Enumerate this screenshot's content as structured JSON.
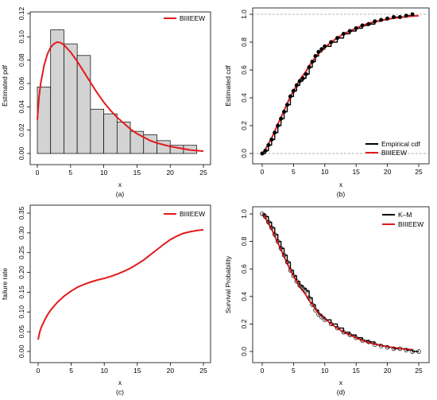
{
  "chart_data": [
    {
      "type": "bar",
      "ylabel": "Estimated pdf",
      "xlabel": "x",
      "caption": "(a)",
      "xlim": [
        0,
        25
      ],
      "ylim": [
        0,
        0.12
      ],
      "xticks": [
        "0",
        "5",
        "10",
        "15",
        "20",
        "25"
      ],
      "yticks": [
        "0.00",
        "0.02",
        "0.04",
        "0.06",
        "0.08",
        "0.10",
        "0.12"
      ],
      "legend": {
        "position": "top-right",
        "entries": [
          "BIIIEEW"
        ]
      },
      "histogram": {
        "breaks": [
          0,
          2,
          4,
          6,
          8,
          10,
          12,
          14,
          16,
          18,
          20,
          22,
          24
        ],
        "values": [
          0.057,
          0.106,
          0.094,
          0.084,
          0.038,
          0.034,
          0.027,
          0.019,
          0.016,
          0.011,
          0.007,
          0.007
        ]
      },
      "series": [
        {
          "name": "BIIIEEW",
          "x": [
            0,
            0.25,
            0.5,
            1,
            1.5,
            2,
            2.5,
            3,
            3.5,
            4,
            5,
            6,
            7,
            8,
            9,
            10,
            11,
            12,
            13,
            14,
            15,
            16,
            17,
            18,
            19,
            20,
            21,
            22,
            23,
            24,
            25
          ],
          "y": [
            0.029,
            0.048,
            0.06,
            0.075,
            0.085,
            0.091,
            0.094,
            0.0955,
            0.095,
            0.093,
            0.087,
            0.079,
            0.07,
            0.061,
            0.052,
            0.044,
            0.037,
            0.031,
            0.026,
            0.021,
            0.017,
            0.014,
            0.011,
            0.009,
            0.0075,
            0.006,
            0.005,
            0.004,
            0.003,
            0.0025,
            0.002
          ]
        }
      ]
    },
    {
      "type": "line",
      "ylabel": "Estimated cdf",
      "xlabel": "x",
      "caption": "(b)",
      "xlim": [
        0,
        25
      ],
      "ylim": [
        0,
        1
      ],
      "xticks": [
        "0",
        "5",
        "10",
        "15",
        "20",
        "25"
      ],
      "yticks": [
        "0.0",
        "0.2",
        "0.4",
        "0.6",
        "0.8",
        "1.0"
      ],
      "legend": {
        "position": "bottom-right",
        "entries": [
          "Empirical cdf",
          "BIIIEEW"
        ]
      },
      "series": [
        {
          "name": "Empirical cdf",
          "x": [
            0,
            0.5,
            1,
            1.5,
            2,
            2.5,
            3,
            3.5,
            4,
            4.5,
            5,
            5.5,
            6,
            6.5,
            7,
            7.5,
            8,
            8.5,
            9,
            9.5,
            10,
            11,
            12,
            13,
            14,
            15,
            16,
            17,
            18,
            19,
            20,
            21,
            22,
            23,
            24
          ],
          "y": [
            0.0,
            0.02,
            0.06,
            0.1,
            0.15,
            0.2,
            0.25,
            0.3,
            0.35,
            0.41,
            0.45,
            0.49,
            0.52,
            0.54,
            0.57,
            0.62,
            0.66,
            0.7,
            0.73,
            0.75,
            0.77,
            0.8,
            0.83,
            0.86,
            0.88,
            0.9,
            0.92,
            0.93,
            0.95,
            0.96,
            0.97,
            0.98,
            0.98,
            0.99,
            1.0
          ]
        },
        {
          "name": "BIIIEEW",
          "x": [
            0,
            0.5,
            1,
            1.5,
            2,
            2.5,
            3,
            3.5,
            4,
            4.5,
            5,
            5.5,
            6,
            6.5,
            7,
            7.5,
            8,
            8.5,
            9,
            9.5,
            10,
            11,
            12,
            13,
            14,
            15,
            16,
            17,
            18,
            19,
            20,
            21,
            22,
            23,
            24,
            25
          ],
          "y": [
            0.0,
            0.03,
            0.07,
            0.11,
            0.16,
            0.21,
            0.26,
            0.31,
            0.36,
            0.41,
            0.45,
            0.49,
            0.53,
            0.56,
            0.59,
            0.63,
            0.66,
            0.69,
            0.72,
            0.74,
            0.76,
            0.8,
            0.83,
            0.86,
            0.88,
            0.9,
            0.92,
            0.935,
            0.947,
            0.957,
            0.965,
            0.972,
            0.978,
            0.983,
            0.987,
            0.99
          ]
        }
      ]
    },
    {
      "type": "line",
      "ylabel": "failure rate",
      "xlabel": "x",
      "caption": "(c)",
      "xlim": [
        0,
        25
      ],
      "ylim": [
        0,
        0.35
      ],
      "xticks": [
        "0",
        "5",
        "10",
        "15",
        "20",
        "25"
      ],
      "yticks": [
        "0.00",
        "0.05",
        "0.10",
        "0.15",
        "0.20",
        "0.25",
        "0.30",
        "0.35"
      ],
      "legend": {
        "position": "top-right",
        "entries": [
          "BIIIEEW"
        ]
      },
      "series": [
        {
          "name": "BIIIEEW",
          "x": [
            0,
            0.25,
            0.5,
            1,
            1.5,
            2,
            3,
            4,
            5,
            6,
            7,
            8,
            9,
            10,
            11,
            12,
            13,
            14,
            15,
            16,
            17,
            18,
            19,
            20,
            21,
            22,
            23,
            24,
            25
          ],
          "y": [
            0.03,
            0.05,
            0.062,
            0.08,
            0.095,
            0.107,
            0.126,
            0.141,
            0.153,
            0.163,
            0.17,
            0.176,
            0.181,
            0.185,
            0.19,
            0.196,
            0.203,
            0.211,
            0.221,
            0.232,
            0.245,
            0.258,
            0.271,
            0.283,
            0.292,
            0.299,
            0.303,
            0.306,
            0.308
          ]
        }
      ]
    },
    {
      "type": "line",
      "ylabel": "Survival Probability",
      "xlabel": "x",
      "caption": "(d)",
      "xlim": [
        0,
        25
      ],
      "ylim": [
        0,
        1
      ],
      "xticks": [
        "0",
        "5",
        "10",
        "15",
        "20",
        "25"
      ],
      "yticks": [
        "0.0",
        "0.2",
        "0.4",
        "0.6",
        "0.8",
        "1.0"
      ],
      "legend": {
        "position": "top-right",
        "entries": [
          "K–M",
          "BIIIEEW"
        ]
      },
      "series": [
        {
          "name": "K–M",
          "x": [
            0,
            0.5,
            1,
            1.5,
            2,
            2.5,
            3,
            3.5,
            4,
            4.5,
            5,
            5.5,
            6,
            6.5,
            7,
            7.5,
            8,
            8.5,
            9,
            9.5,
            10,
            11,
            12,
            13,
            14,
            15,
            16,
            17,
            18,
            19,
            20,
            21,
            22,
            23,
            24,
            25
          ],
          "y": [
            1.0,
            0.98,
            0.94,
            0.9,
            0.85,
            0.8,
            0.75,
            0.7,
            0.65,
            0.59,
            0.55,
            0.51,
            0.48,
            0.46,
            0.44,
            0.39,
            0.34,
            0.3,
            0.27,
            0.25,
            0.23,
            0.2,
            0.17,
            0.14,
            0.12,
            0.1,
            0.08,
            0.07,
            0.05,
            0.04,
            0.03,
            0.02,
            0.02,
            0.01,
            0.0,
            0.0
          ]
        },
        {
          "name": "BIIIEEW",
          "x": [
            0,
            0.5,
            1,
            1.5,
            2,
            2.5,
            3,
            3.5,
            4,
            4.5,
            5,
            5.5,
            6,
            6.5,
            7,
            7.5,
            8,
            8.5,
            9,
            9.5,
            10,
            11,
            12,
            13,
            14,
            15,
            16,
            17,
            18,
            19,
            20,
            21,
            22,
            23,
            24
          ],
          "y": [
            1.0,
            0.97,
            0.93,
            0.89,
            0.84,
            0.79,
            0.74,
            0.69,
            0.64,
            0.59,
            0.55,
            0.51,
            0.47,
            0.44,
            0.41,
            0.37,
            0.34,
            0.31,
            0.28,
            0.26,
            0.24,
            0.2,
            0.17,
            0.14,
            0.12,
            0.1,
            0.08,
            0.065,
            0.053,
            0.043,
            0.035,
            0.028,
            0.022,
            0.017,
            0.013
          ]
        }
      ]
    }
  ],
  "colors": {
    "model": "#e31a1c",
    "empirical": "#000000",
    "bar_fill": "#d3d3d3",
    "reference": "#9e9e9e"
  }
}
